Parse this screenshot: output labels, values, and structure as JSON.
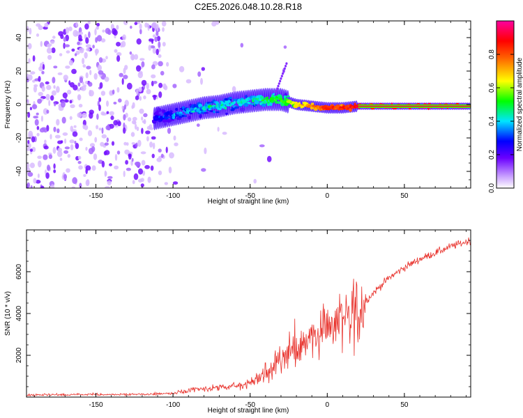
{
  "title": "C2E5.2026.048.10.28.R18",
  "chart_data": [
    {
      "type": "heatmap",
      "xlabel": "Height of straight line (km)",
      "ylabel": "Frequency (Hz)",
      "xlim": [
        -195,
        93
      ],
      "ylim": [
        -50,
        50
      ],
      "xticks": [
        -150,
        -100,
        -50,
        0,
        50
      ],
      "yticks": [
        -40,
        -20,
        0,
        20,
        40
      ],
      "colorbar": {
        "label": "Normalized spectral amplitude",
        "range": [
          0.0,
          1.0
        ],
        "ticks": [
          "0.0",
          "0.2",
          "0.4",
          "0.6",
          "0.8"
        ]
      },
      "ridge": [
        {
          "x": -110,
          "y": -8,
          "amp": 0.3
        },
        {
          "x": -100,
          "y": -6,
          "amp": 0.35
        },
        {
          "x": -90,
          "y": -4,
          "amp": 0.4
        },
        {
          "x": -80,
          "y": -2,
          "amp": 0.4
        },
        {
          "x": -70,
          "y": -1,
          "amp": 0.45
        },
        {
          "x": -60,
          "y": 1,
          "amp": 0.45
        },
        {
          "x": -50,
          "y": 2,
          "amp": 0.45
        },
        {
          "x": -40,
          "y": 3,
          "amp": 0.5
        },
        {
          "x": -30,
          "y": 3,
          "amp": 0.55
        },
        {
          "x": -20,
          "y": 0,
          "amp": 0.65
        },
        {
          "x": -10,
          "y": -1,
          "amp": 0.75
        },
        {
          "x": 0,
          "y": -2,
          "amp": 0.85
        },
        {
          "x": 10,
          "y": -2,
          "amp": 0.85
        },
        {
          "x": 20,
          "y": -1,
          "amp": 0.9
        },
        {
          "x": 40,
          "y": -1,
          "amp": 0.92
        },
        {
          "x": 60,
          "y": -1,
          "amp": 0.95
        },
        {
          "x": 80,
          "y": -1,
          "amp": 0.97
        },
        {
          "x": 93,
          "y": -1,
          "amp": 0.98
        }
      ]
    },
    {
      "type": "line",
      "xlabel": "Height of straight line (km)",
      "ylabel": "SNR (10 * v/v)",
      "xlim": [
        -195,
        93
      ],
      "ylim": [
        0,
        8000
      ],
      "xticks": [
        -150,
        -100,
        -50,
        0,
        50
      ],
      "yticks": [
        2000,
        4000,
        6000
      ],
      "color": "#e8302a",
      "series": [
        {
          "x": [
            -195,
            -150,
            -120,
            -100,
            -90,
            -80,
            -70,
            -60,
            -50,
            -40,
            -30,
            -20,
            -10,
            0,
            10,
            20,
            30,
            40,
            50,
            60,
            70,
            80,
            93
          ],
          "y": [
            100,
            120,
            130,
            180,
            300,
            400,
            450,
            500,
            700,
            1100,
            1700,
            2300,
            3000,
            3400,
            3600,
            4200,
            5000,
            5700,
            6200,
            6600,
            6900,
            7200,
            7500
          ]
        }
      ]
    }
  ]
}
